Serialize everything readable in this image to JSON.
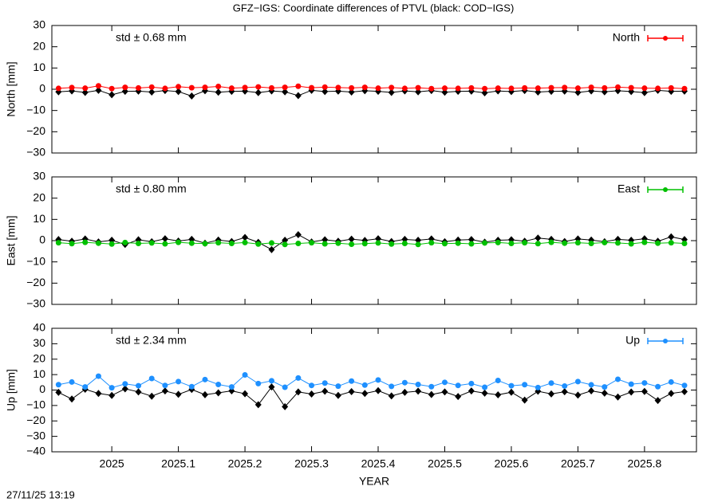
{
  "title": "GFZ−IGS: Coordinate differences of PTVL (black: COD−IGS)",
  "footer": "27/11/25 13:19",
  "chart_data": [
    {
      "type": "scatter",
      "ylabel": "North [mm]",
      "annotation": "std ± 0.68 mm",
      "legend": "upper right",
      "xlim": [
        2024.91,
        2025.878
      ],
      "xticks": [
        2025,
        2025.1,
        2025.2,
        2025.3,
        2025.4,
        2025.5,
        2025.6,
        2025.7,
        2025.8
      ],
      "xtick_labels": false,
      "ylim": [
        -30,
        30
      ],
      "yticks": [
        {
          "value": -30,
          "label": "−30"
        },
        {
          "value": -20,
          "label": "−20"
        },
        {
          "value": -10,
          "label": "−10"
        },
        0,
        10,
        20,
        30
      ],
      "x": [
        2024.92,
        2024.94,
        2024.96,
        2024.98,
        2025,
        2025.02,
        2025.04,
        2025.06,
        2025.08,
        2025.1,
        2025.12,
        2025.14,
        2025.16,
        2025.18,
        2025.2,
        2025.22,
        2025.24,
        2025.26,
        2025.28,
        2025.3,
        2025.32,
        2025.34,
        2025.36,
        2025.38,
        2025.4,
        2025.42,
        2025.44,
        2025.46,
        2025.48,
        2025.5,
        2025.52,
        2025.54,
        2025.56,
        2025.58,
        2025.6,
        2025.62,
        2025.64,
        2025.66,
        2025.68,
        2025.7,
        2025.72,
        2025.74,
        2025.76,
        2025.78,
        2025.8,
        2025.82,
        2025.84,
        2025.86
      ],
      "series": [
        {
          "color": "#000000",
          "values": [
            -1.2,
            -0.8,
            -1.5,
            -0.5,
            -2.6,
            -1.0,
            -0.9,
            -1.3,
            -0.6,
            -1.1,
            -3.2,
            -0.7,
            -1.4,
            -1.0,
            -0.9,
            -1.6,
            -0.8,
            -1.2,
            -3.0,
            -0.5,
            -1.1,
            -0.9,
            -1.3,
            -0.7,
            -1.0,
            -1.5,
            -0.8,
            -1.2,
            -0.6,
            -1.4,
            -1.0,
            -0.9,
            -1.7,
            -0.8,
            -1.1,
            -0.6,
            -1.3,
            -1.0,
            -0.9,
            -1.5,
            -0.8,
            -1.2,
            -0.7,
            -1.1,
            -1.6,
            -0.5,
            -1.0,
            -0.9
          ]
        },
        {
          "name": "North",
          "color": "#ff0000",
          "values": [
            0.4,
            0.8,
            0.5,
            1.6,
            0.3,
            0.9,
            0.6,
            1.0,
            0.4,
            1.2,
            0.7,
            0.9,
            1.3,
            0.5,
            0.8,
            1.1,
            0.6,
            0.9,
            1.4,
            0.7,
            1.0,
            0.8,
            0.6,
            0.9,
            0.5,
            0.8,
            0.4,
            0.7,
            0.3,
            0.5,
            0.4,
            0.6,
            0.3,
            0.5,
            0.4,
            0.6,
            0.5,
            0.7,
            0.8,
            0.5,
            0.9,
            0.6,
            1.0,
            0.7,
            0.5,
            0.4,
            0.6,
            0.3
          ]
        }
      ]
    },
    {
      "type": "scatter",
      "ylabel": "East [mm]",
      "annotation": "std ± 0.80 mm",
      "legend": "upper right",
      "xlim": [
        2024.91,
        2025.878
      ],
      "xticks": [
        2025,
        2025.1,
        2025.2,
        2025.3,
        2025.4,
        2025.5,
        2025.6,
        2025.7,
        2025.8
      ],
      "xtick_labels": false,
      "ylim": [
        -30,
        30
      ],
      "yticks": [
        {
          "value": -30,
          "label": "−30"
        },
        {
          "value": -20,
          "label": "−20"
        },
        {
          "value": -10,
          "label": "−10"
        },
        0,
        10,
        20,
        30
      ],
      "x": [
        2024.92,
        2024.94,
        2024.96,
        2024.98,
        2025,
        2025.02,
        2025.04,
        2025.06,
        2025.08,
        2025.1,
        2025.12,
        2025.14,
        2025.16,
        2025.18,
        2025.2,
        2025.22,
        2025.24,
        2025.26,
        2025.28,
        2025.3,
        2025.32,
        2025.34,
        2025.36,
        2025.38,
        2025.4,
        2025.42,
        2025.44,
        2025.46,
        2025.48,
        2025.5,
        2025.52,
        2025.54,
        2025.56,
        2025.58,
        2025.6,
        2025.62,
        2025.64,
        2025.66,
        2025.68,
        2025.7,
        2025.72,
        2025.74,
        2025.76,
        2025.78,
        2025.8,
        2025.82,
        2025.84,
        2025.86
      ],
      "series": [
        {
          "color": "#000000",
          "values": [
            0.5,
            -0.3,
            0.8,
            -0.6,
            0.2,
            -1.8,
            0.4,
            -0.5,
            0.9,
            -0.2,
            0.6,
            -1.2,
            0.3,
            -0.4,
            1.5,
            -0.8,
            -4.2,
            0.2,
            2.8,
            -0.6,
            0.4,
            -0.3,
            0.7,
            0.1,
            0.9,
            -0.4,
            0.6,
            0.2,
            0.8,
            -0.5,
            0.3,
            0.5,
            -0.7,
            0.2,
            0.4,
            -0.3,
            1.2,
            0.6,
            -0.4,
            0.8,
            0.3,
            -0.5,
            0.6,
            0.2,
            0.9,
            -0.3,
            1.8,
            0.5
          ]
        },
        {
          "name": "East",
          "color": "#00c000",
          "values": [
            -1.0,
            -1.4,
            -0.8,
            -1.2,
            -1.6,
            -0.9,
            -1.3,
            -1.1,
            -1.5,
            -0.8,
            -1.2,
            -1.4,
            -1.0,
            -1.3,
            -0.9,
            -1.6,
            -1.1,
            -1.8,
            -1.3,
            -1.0,
            -1.5,
            -1.2,
            -1.7,
            -1.4,
            -1.1,
            -1.6,
            -1.3,
            -1.8,
            -1.0,
            -1.4,
            -1.2,
            -1.5,
            -1.1,
            -0.9,
            -1.3,
            -1.0,
            -1.4,
            -0.8,
            -1.2,
            -1.0,
            -1.3,
            -0.9,
            -1.1,
            -1.5,
            -0.8,
            -1.2,
            -1.0,
            -1.3
          ]
        }
      ]
    },
    {
      "type": "scatter",
      "ylabel": "Up [mm]",
      "annotation": "std ± 2.34 mm",
      "legend": "upper right",
      "xlabel": "YEAR",
      "xlim": [
        2024.91,
        2025.878
      ],
      "xticks": [
        2025,
        2025.1,
        2025.2,
        2025.3,
        2025.4,
        2025.5,
        2025.6,
        2025.7,
        2025.8
      ],
      "xtick_labels": true,
      "ylim": [
        -40,
        40
      ],
      "yticks": [
        {
          "value": -40,
          "label": "−40"
        },
        {
          "value": -30,
          "label": "−30"
        },
        {
          "value": -20,
          "label": "−20"
        },
        {
          "value": -10,
          "label": "−10"
        },
        0,
        10,
        20,
        30,
        40
      ],
      "x": [
        2024.92,
        2024.94,
        2024.96,
        2024.98,
        2025,
        2025.02,
        2025.04,
        2025.06,
        2025.08,
        2025.1,
        2025.12,
        2025.14,
        2025.16,
        2025.18,
        2025.2,
        2025.22,
        2025.24,
        2025.26,
        2025.28,
        2025.3,
        2025.32,
        2025.34,
        2025.36,
        2025.38,
        2025.4,
        2025.42,
        2025.44,
        2025.46,
        2025.48,
        2025.5,
        2025.52,
        2025.54,
        2025.56,
        2025.58,
        2025.6,
        2025.62,
        2025.64,
        2025.66,
        2025.68,
        2025.7,
        2025.72,
        2025.74,
        2025.76,
        2025.78,
        2025.8,
        2025.82,
        2025.84,
        2025.86
      ],
      "series": [
        {
          "color": "#000000",
          "values": [
            -1.5,
            -5.8,
            0.5,
            -2.2,
            -3.5,
            0.8,
            -1.2,
            -4.0,
            -0.6,
            -2.8,
            0.4,
            -3.0,
            -1.8,
            -0.5,
            -2.4,
            -9.5,
            2.0,
            -10.8,
            -1.2,
            -2.6,
            -0.8,
            -3.5,
            -1.0,
            -2.2,
            -0.4,
            -3.8,
            -1.5,
            -0.7,
            -2.9,
            -1.2,
            -4.2,
            -0.6,
            -2.0,
            -3.1,
            -1.4,
            -6.5,
            -0.8,
            -2.5,
            -1.1,
            -3.3,
            -0.5,
            -2.0,
            -4.5,
            -1.3,
            -0.9,
            -6.8,
            -2.2,
            -1.0
          ]
        },
        {
          "name": "Up",
          "color": "#1e90ff",
          "values": [
            3.5,
            5.2,
            2.0,
            9.0,
            1.5,
            4.0,
            2.8,
            7.5,
            3.0,
            5.5,
            2.2,
            6.8,
            3.6,
            2.0,
            9.8,
            4.2,
            6.0,
            1.8,
            7.8,
            3.0,
            4.5,
            2.5,
            5.8,
            3.2,
            6.5,
            2.4,
            4.8,
            3.6,
            2.2,
            5.0,
            3.0,
            4.2,
            1.8,
            6.2,
            2.8,
            3.5,
            1.6,
            4.5,
            2.6,
            5.5,
            3.4,
            2.0,
            7.0,
            3.8,
            4.6,
            2.2,
            5.2,
            3.0
          ]
        }
      ]
    }
  ]
}
